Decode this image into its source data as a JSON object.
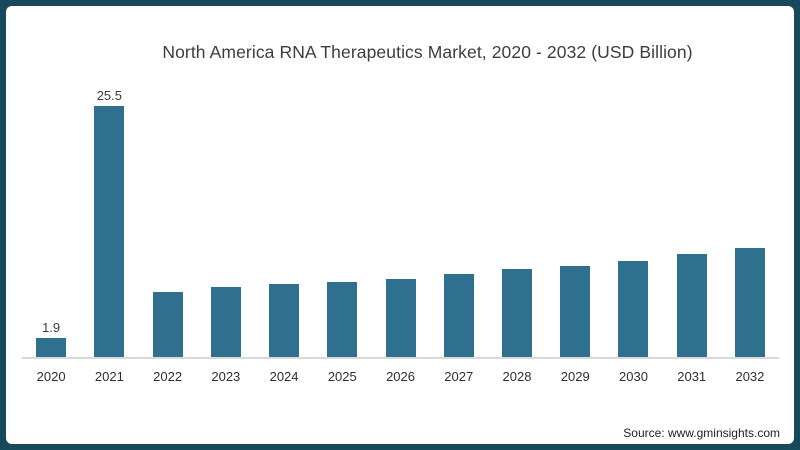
{
  "title": "North America RNA Therapeutics Market, 2020 - 2032 (USD Billion)",
  "source": "Source: www.gminsights.com",
  "frame": {
    "border_color": "#16495c",
    "background_color": "#ffffff"
  },
  "chart_data": {
    "type": "bar",
    "title": "North America RNA Therapeutics Market, 2020 - 2032 (USD Billion)",
    "xlabel": "",
    "ylabel": "USD Billion",
    "categories": [
      "2020",
      "2021",
      "2022",
      "2023",
      "2024",
      "2025",
      "2026",
      "2027",
      "2028",
      "2029",
      "2030",
      "2031",
      "2032"
    ],
    "values": [
      1.9,
      25.5,
      6.6,
      7.1,
      7.4,
      7.6,
      7.9,
      8.4,
      8.9,
      9.2,
      9.8,
      10.5,
      11.1
    ],
    "bar_labels": [
      "1.9",
      "25.5",
      "",
      "",
      "",
      "",
      "",
      "",
      "",
      "",
      "",
      "",
      ""
    ],
    "ylim": [
      0,
      27
    ],
    "grid": false,
    "legend": "none",
    "bar_color": "#30708f",
    "axis_line_color": "#d9d9d9"
  }
}
